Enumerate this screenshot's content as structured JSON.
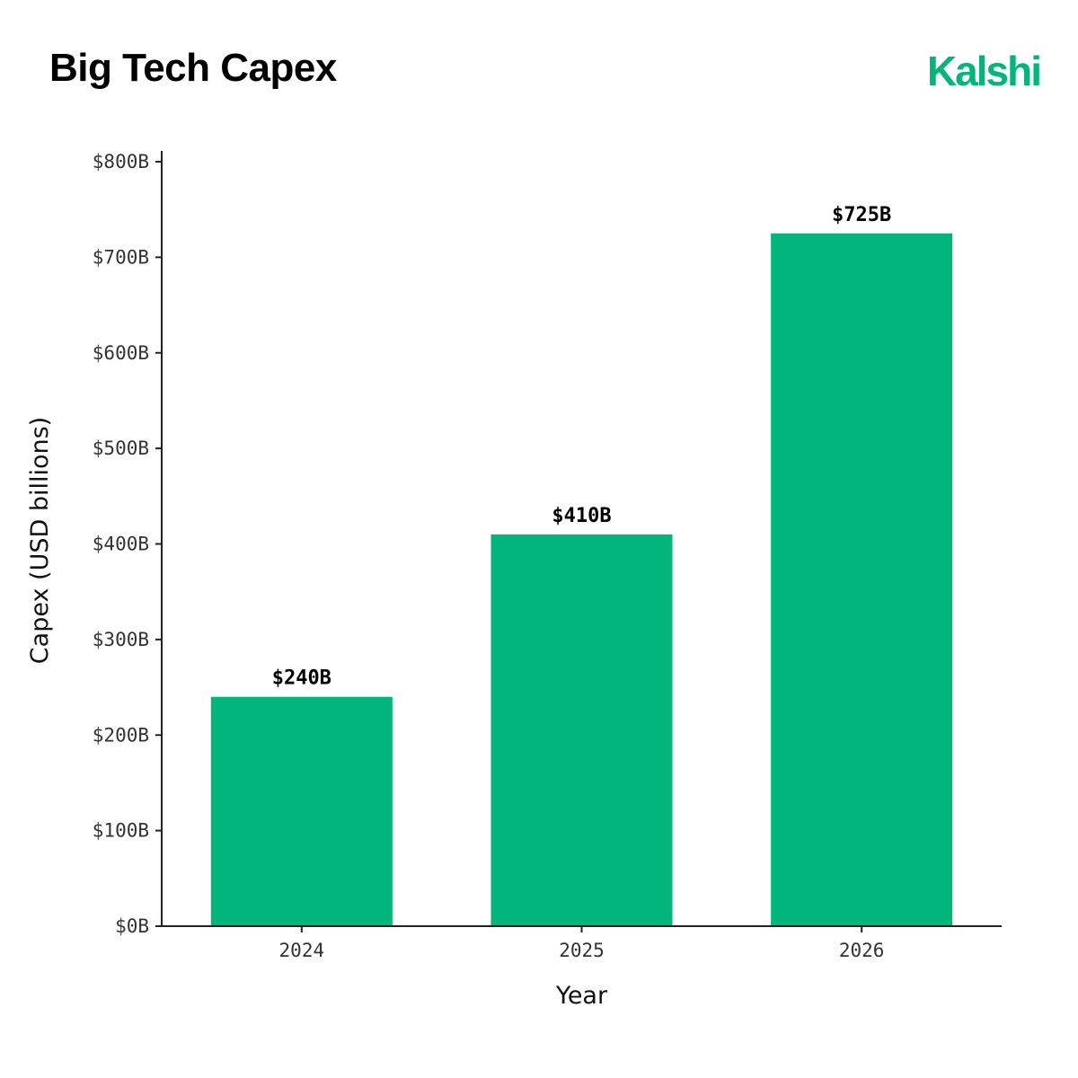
{
  "header": {
    "title": "Big Tech Capex",
    "logo_text": "Kalshi"
  },
  "colors": {
    "bar": "#02B57B",
    "logo": "#02B57B",
    "axis": "#222222"
  },
  "chart_data": {
    "type": "bar",
    "title": "Big Tech Capex",
    "xlabel": "Year",
    "ylabel": "Capex (USD billions)",
    "categories": [
      "2024",
      "2025",
      "2026"
    ],
    "values": [
      240,
      410,
      725
    ],
    "data_labels": [
      "$240B",
      "$410B",
      "$725B"
    ],
    "ylim": [
      0,
      800
    ],
    "yticks": [
      0,
      100,
      200,
      300,
      400,
      500,
      600,
      700,
      800
    ],
    "ytick_labels": [
      "$0B",
      "$100B",
      "$200B",
      "$300B",
      "$400B",
      "$500B",
      "$600B",
      "$700B",
      "$800B"
    ],
    "grid": false,
    "legend": "none"
  }
}
